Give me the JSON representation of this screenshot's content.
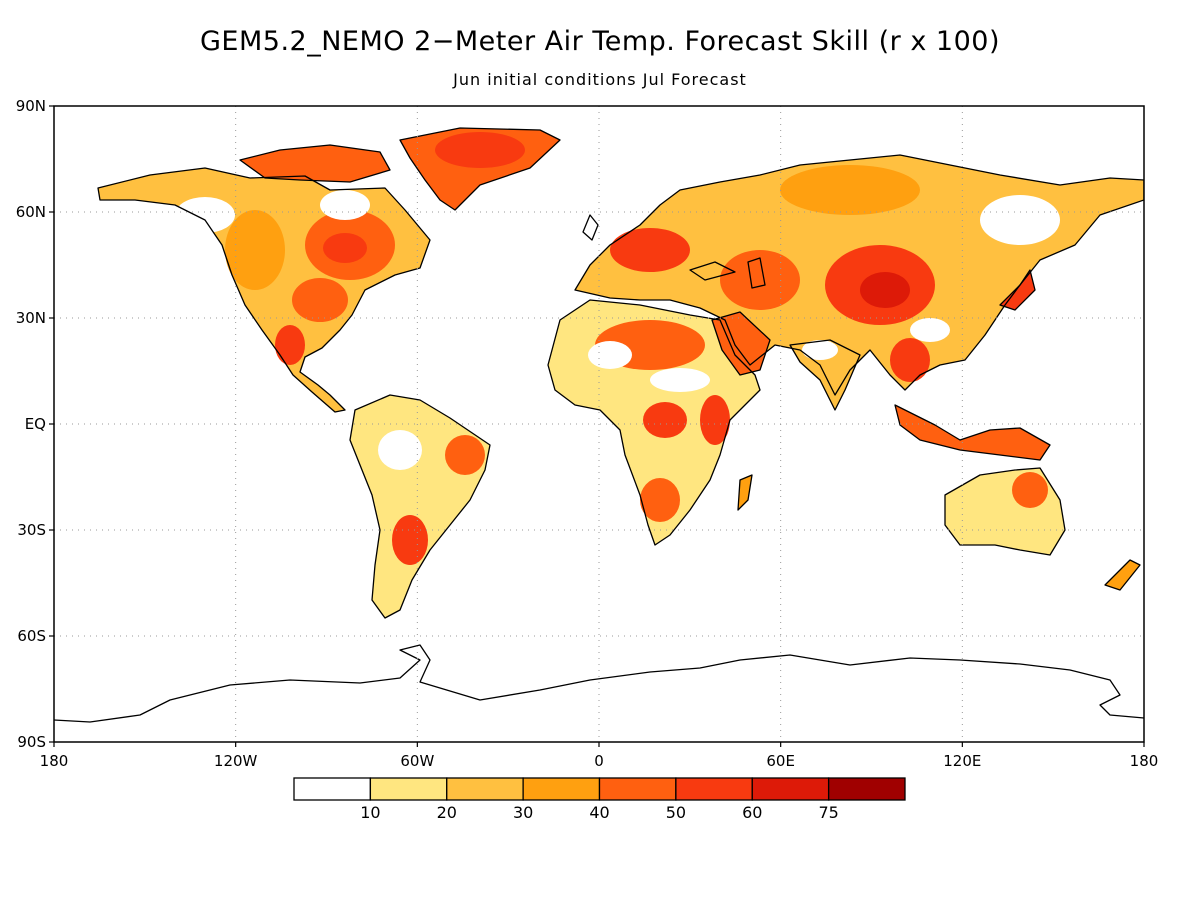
{
  "title": "GEM5.2_NEMO 2−Meter Air Temp. Forecast Skill (r x 100)",
  "subtitle": "Jun initial conditions   Jul Forecast",
  "axes": {
    "lat_labels": [
      "90N",
      "60N",
      "30N",
      "EQ",
      "30S",
      "60S",
      "90S"
    ],
    "lat_values": [
      90,
      60,
      30,
      0,
      -30,
      -60,
      -90
    ],
    "lon_labels": [
      "180",
      "120W",
      "60W",
      "0",
      "60E",
      "120E",
      "180"
    ],
    "lon_values": [
      -180,
      -120,
      -60,
      0,
      60,
      120,
      180
    ],
    "grid": true
  },
  "colorbar": {
    "boundaries": [
      "10",
      "20",
      "30",
      "40",
      "50",
      "60",
      "75"
    ],
    "colors": [
      "#ffffff",
      "#ffe680",
      "#ffc040",
      "#ffa010",
      "#ff6010",
      "#f83a10",
      "#dd1a08",
      "#a00000"
    ]
  }
}
